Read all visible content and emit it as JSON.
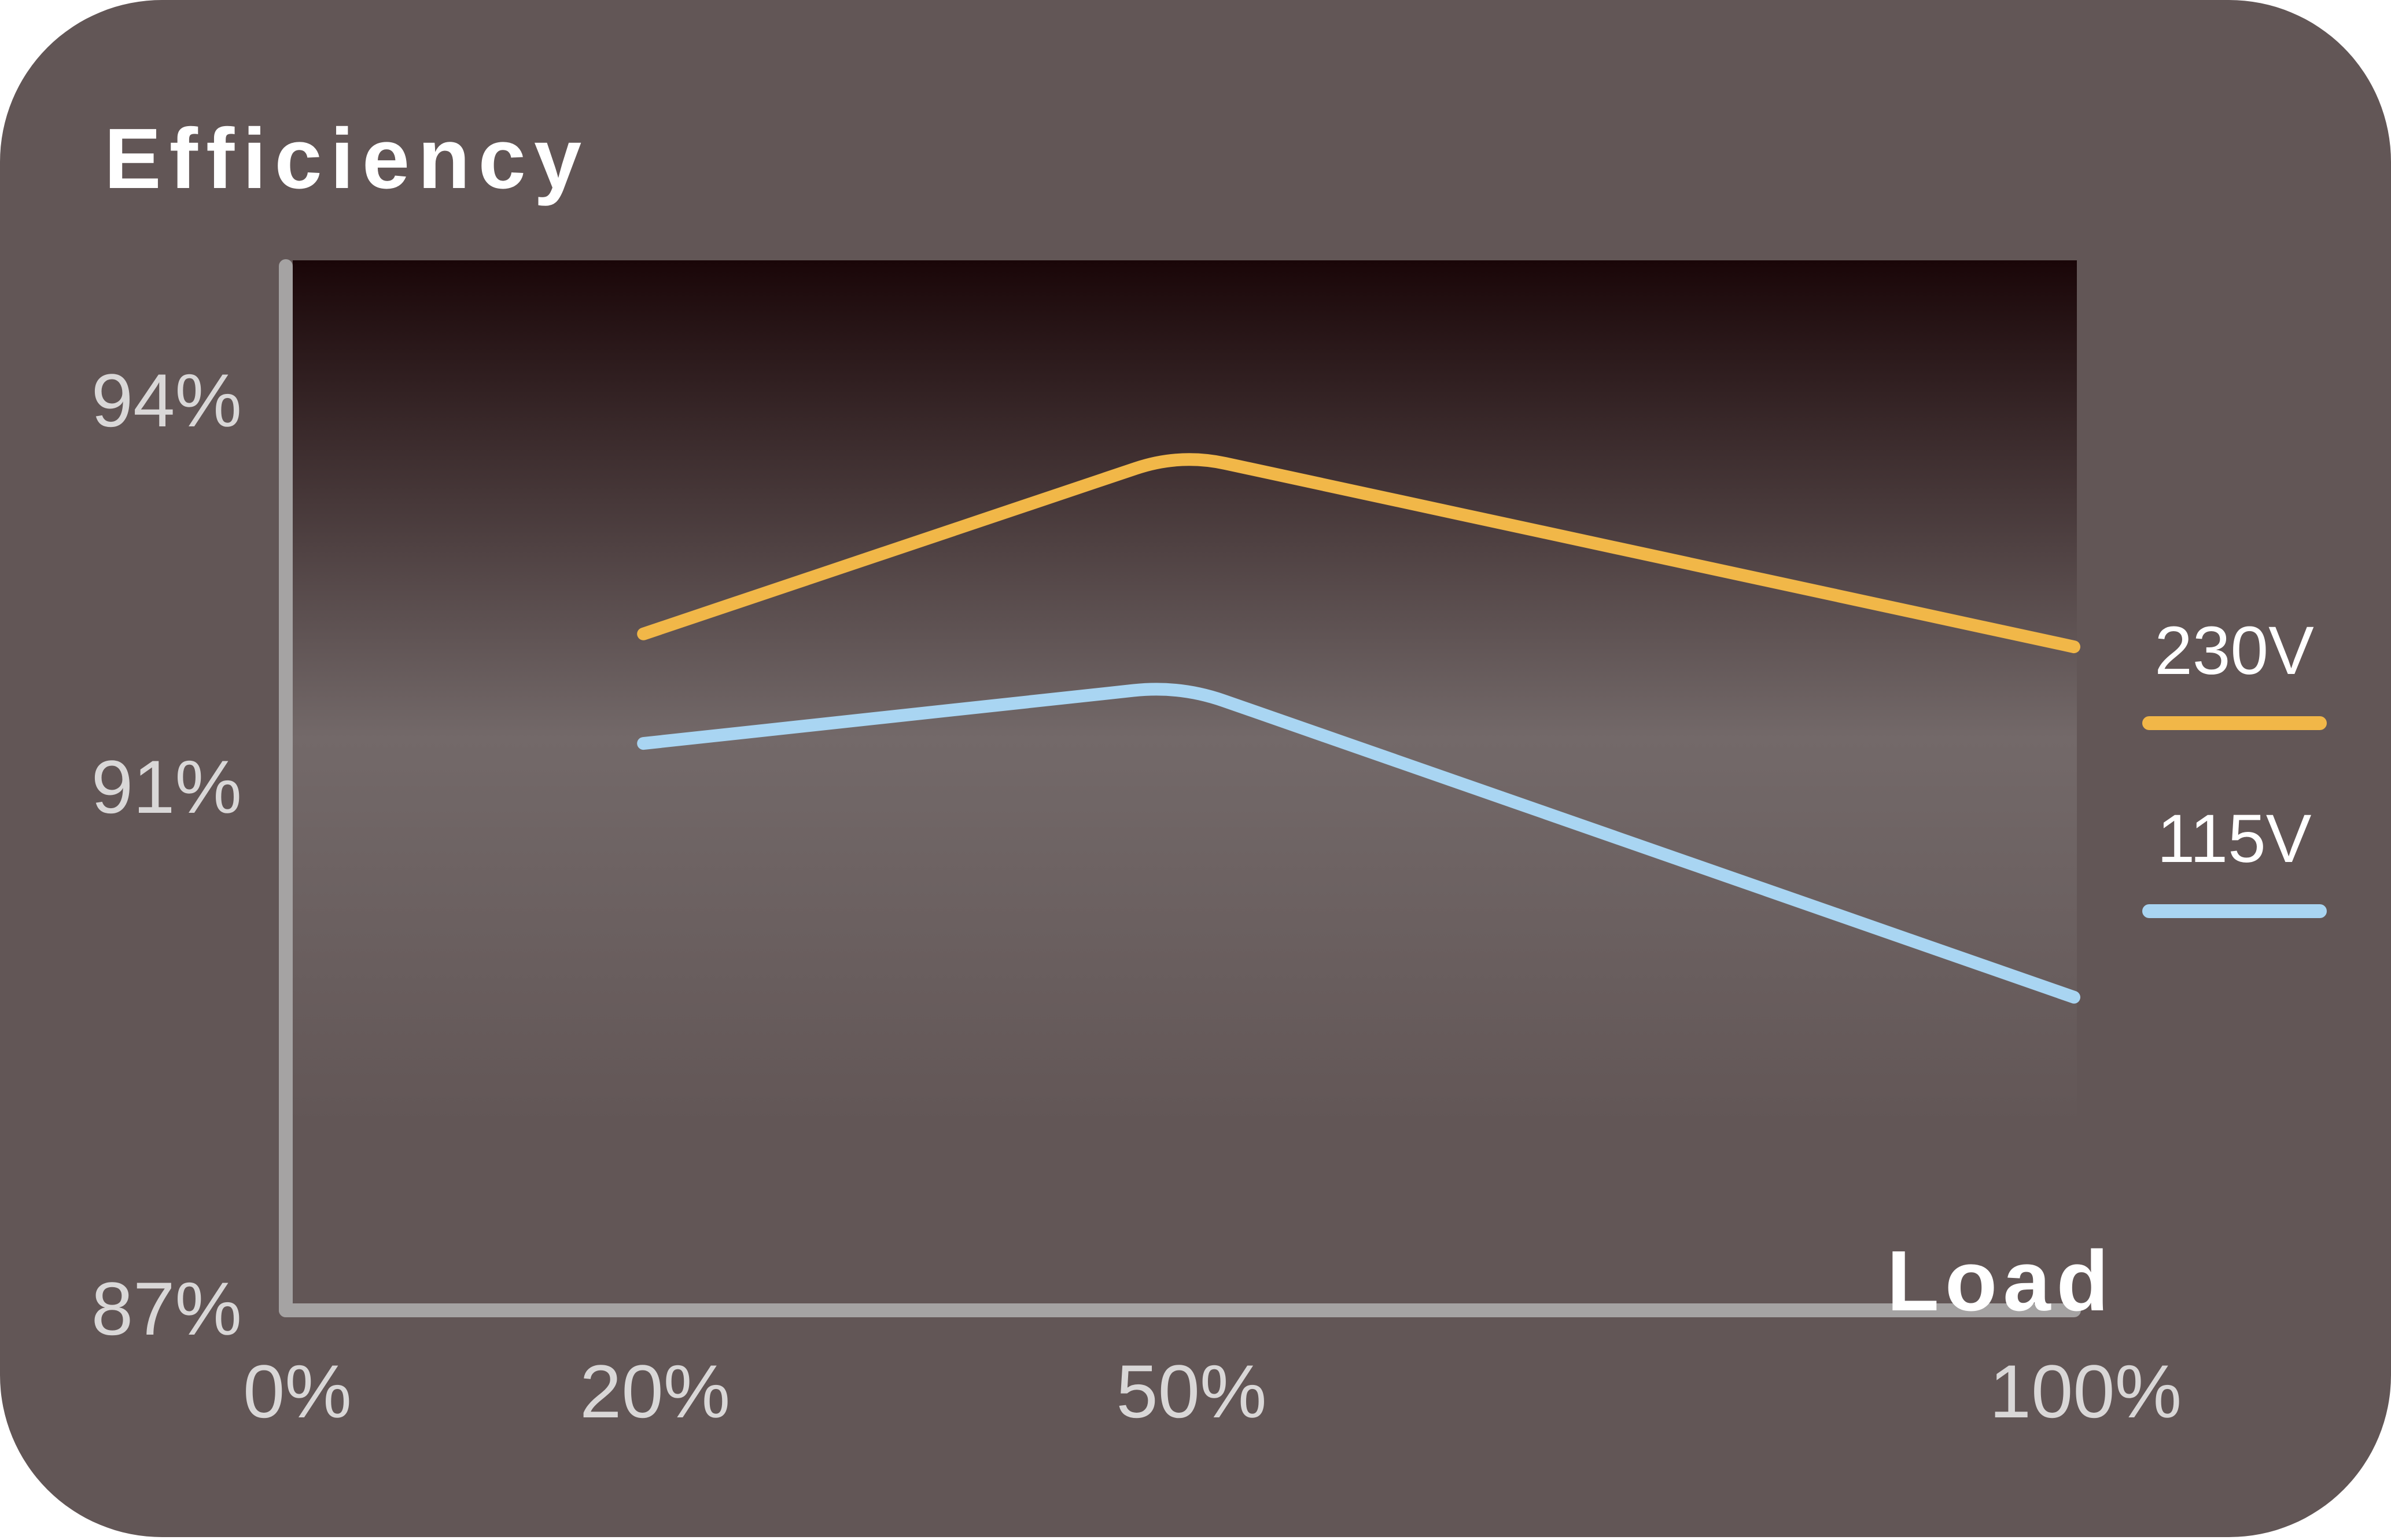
{
  "colors": {
    "panel_background": "#625656",
    "plot_top": "#1a0608",
    "plot_mid": "#736969",
    "axis": "#a5a3a3",
    "tick_text": "#d9d7d7",
    "title_text": "#ffffff",
    "legend_text": "#ffffff"
  },
  "chart_data": {
    "type": "line",
    "ylabel": "Efficiency",
    "xlabel": "Load",
    "x_ticks": [
      {
        "value": 0,
        "label": "0%"
      },
      {
        "value": 20,
        "label": "20%"
      },
      {
        "value": 50,
        "label": "50%"
      },
      {
        "value": 100,
        "label": "100%"
      }
    ],
    "y_ticks": [
      {
        "value": 87,
        "label": "87%"
      },
      {
        "value": 91,
        "label": "91%"
      },
      {
        "value": 94,
        "label": "94%"
      }
    ],
    "series": [
      {
        "name": "230V",
        "color": "#f1b748",
        "points": [
          [
            20,
            92.2
          ],
          [
            50,
            93.6
          ],
          [
            100,
            92.1
          ]
        ]
      },
      {
        "name": "115V",
        "color": "#a9d5f2",
        "points": [
          [
            20,
            91.35
          ],
          [
            50,
            91.8
          ],
          [
            100,
            89.4
          ]
        ]
      }
    ],
    "legend_position": "right",
    "grid": false
  }
}
